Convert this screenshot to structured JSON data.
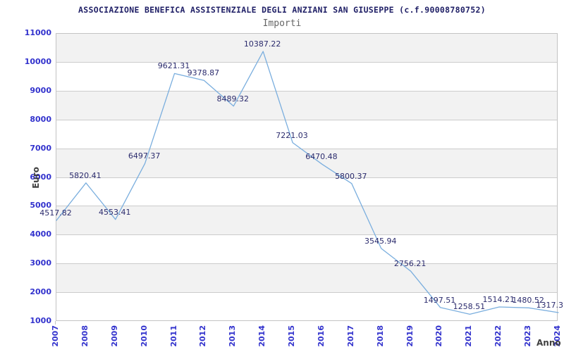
{
  "header": {
    "title": "ASSOCIAZIONE BENEFICA ASSISTENZIALE DEGLI ANZIANI SAN GIUSEPPE (c.f.90008780752)",
    "subtitle": "Importi"
  },
  "chart_data": {
    "type": "line",
    "title": "Importi",
    "xlabel": "Anno",
    "ylabel": "Euro",
    "categories": [
      "2007",
      "2008",
      "2009",
      "2010",
      "2011",
      "2012",
      "2013",
      "2014",
      "2015",
      "2016",
      "2017",
      "2018",
      "2019",
      "2020",
      "2021",
      "2022",
      "2023",
      "2024"
    ],
    "series": [
      {
        "name": "Importi",
        "values": [
          4517.82,
          5820.41,
          4553.41,
          6497.37,
          9621.31,
          9378.87,
          8489.32,
          10387.22,
          7221.03,
          6470.48,
          5800.37,
          3545.94,
          2756.21,
          1497.51,
          1258.51,
          1514.21,
          1480.52,
          1317.3
        ]
      }
    ],
    "point_labels": [
      "4517.82",
      "5820.41",
      "4553.41",
      "6497.37",
      "9621.31",
      "9378.87",
      "8489.32",
      "10387.22",
      "7221.03",
      "6470.48",
      "5800.37",
      "3545.94",
      "2756.21",
      "1497.51",
      "1258.51",
      "1514.21",
      "1480.52",
      "1317.3"
    ],
    "ylim": [
      1000,
      11000
    ],
    "yticks": [
      1000,
      2000,
      3000,
      4000,
      5000,
      6000,
      7000,
      8000,
      9000,
      10000,
      11000
    ],
    "grid": true,
    "legend_position": "none",
    "colors": {
      "line": "#7aaede",
      "tick_text": "#3232cd",
      "value_label_text": "#2b2b6d",
      "title_text": "#1f1f66",
      "subtitle_text": "#666666",
      "axis_title_text": "#404040",
      "band": "#f2f2f2",
      "gridline": "#cccccc",
      "border": "#c3c3c3"
    }
  }
}
